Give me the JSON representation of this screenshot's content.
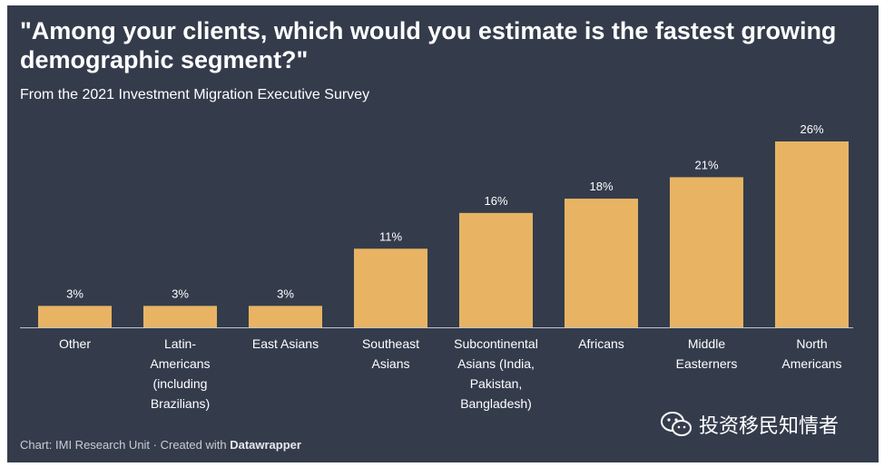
{
  "header": {
    "title": "\"Among your clients, which would you estimate is the fastest growing demographic segment?\"",
    "subtitle": "From the 2021 Investment Migration Executive Survey"
  },
  "footer": {
    "source": "Chart: IMI Research Unit · Created with ",
    "brand": "Datawrapper"
  },
  "watermark": {
    "text": "投资移民知情者",
    "icon": "wechat-icon"
  },
  "colors": {
    "background": "#343c4c",
    "bar": "#e8b464",
    "text": "#ffffff",
    "axis": "#c0c4cc"
  },
  "chart_data": {
    "type": "bar",
    "categories": [
      "Other",
      "Latin-Americans (including Brazilians)",
      "East Asians",
      "Southeast Asians",
      "Subcontinental Asians (India, Pakistan, Bangladesh)",
      "Africans",
      "Middle Easterners",
      "North Americans"
    ],
    "category_lines": [
      [
        "Other"
      ],
      [
        "Latin-",
        "Americans",
        "(including",
        "Brazilians)"
      ],
      [
        "East Asians"
      ],
      [
        "Southeast",
        "Asians"
      ],
      [
        "Subcontinental",
        "Asians (India,",
        "Pakistan,",
        "Bangladesh)"
      ],
      [
        "Africans"
      ],
      [
        "Middle",
        "Easterners"
      ],
      [
        "North",
        "Americans"
      ]
    ],
    "values": [
      3,
      3,
      3,
      11,
      16,
      18,
      21,
      26
    ],
    "value_labels": [
      "3%",
      "3%",
      "3%",
      "11%",
      "16%",
      "18%",
      "21%",
      "26%"
    ],
    "unit": "%",
    "ylim": [
      0,
      26
    ],
    "grid": false
  }
}
